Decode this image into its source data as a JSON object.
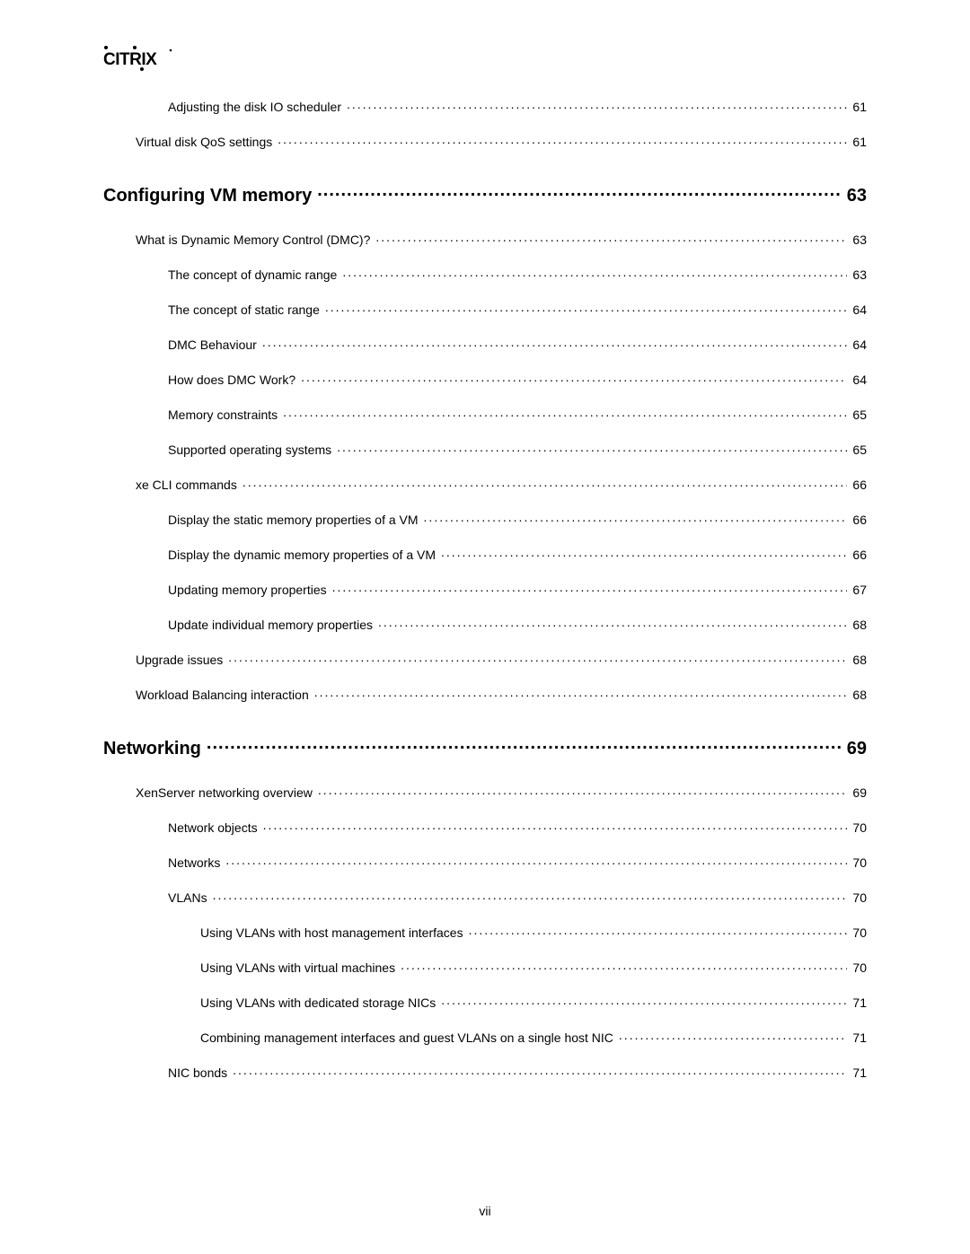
{
  "logo_text": "CITRIX",
  "page_number": "vii",
  "entries": [
    {
      "level": 2,
      "label": "Adjusting the disk IO scheduler",
      "page": "61"
    },
    {
      "level": 1,
      "label": "Virtual disk QoS settings",
      "page": "61"
    },
    {
      "level": 0,
      "label": "Configuring VM memory",
      "page": "63"
    },
    {
      "level": 1,
      "label": "What is Dynamic Memory Control (DMC)?",
      "page": "63"
    },
    {
      "level": 2,
      "label": "The concept of dynamic range",
      "page": "63"
    },
    {
      "level": 2,
      "label": "The concept of static range",
      "page": "64"
    },
    {
      "level": 2,
      "label": "DMC Behaviour",
      "page": "64"
    },
    {
      "level": 2,
      "label": "How does DMC Work?",
      "page": "64"
    },
    {
      "level": 2,
      "label": "Memory constraints",
      "page": "65"
    },
    {
      "level": 2,
      "label": "Supported operating systems",
      "page": "65"
    },
    {
      "level": 1,
      "label": "xe CLI commands",
      "page": "66"
    },
    {
      "level": 2,
      "label": "Display the static memory properties of a VM",
      "page": "66"
    },
    {
      "level": 2,
      "label": "Display the dynamic memory properties of a VM",
      "page": "66"
    },
    {
      "level": 2,
      "label": "Updating memory properties",
      "page": "67"
    },
    {
      "level": 2,
      "label": "Update individual memory properties",
      "page": "68"
    },
    {
      "level": 1,
      "label": "Upgrade issues",
      "page": "68"
    },
    {
      "level": 1,
      "label": "Workload Balancing interaction",
      "page": "68"
    },
    {
      "level": 0,
      "label": "Networking",
      "page": "69"
    },
    {
      "level": 1,
      "label": "XenServer networking overview",
      "page": "69"
    },
    {
      "level": 2,
      "label": "Network objects",
      "page": "70"
    },
    {
      "level": 2,
      "label": "Networks",
      "page": "70"
    },
    {
      "level": 2,
      "label": "VLANs",
      "page": "70"
    },
    {
      "level": 3,
      "label": "Using VLANs with host management interfaces",
      "page": "70"
    },
    {
      "level": 3,
      "label": "Using VLANs with virtual machines",
      "page": "70"
    },
    {
      "level": 3,
      "label": "Using VLANs with dedicated storage NICs",
      "page": "71"
    },
    {
      "level": 3,
      "label": "Combining management interfaces and guest VLANs on a single host NIC",
      "page": "71"
    },
    {
      "level": 2,
      "label": "NIC bonds",
      "page": "71"
    }
  ]
}
